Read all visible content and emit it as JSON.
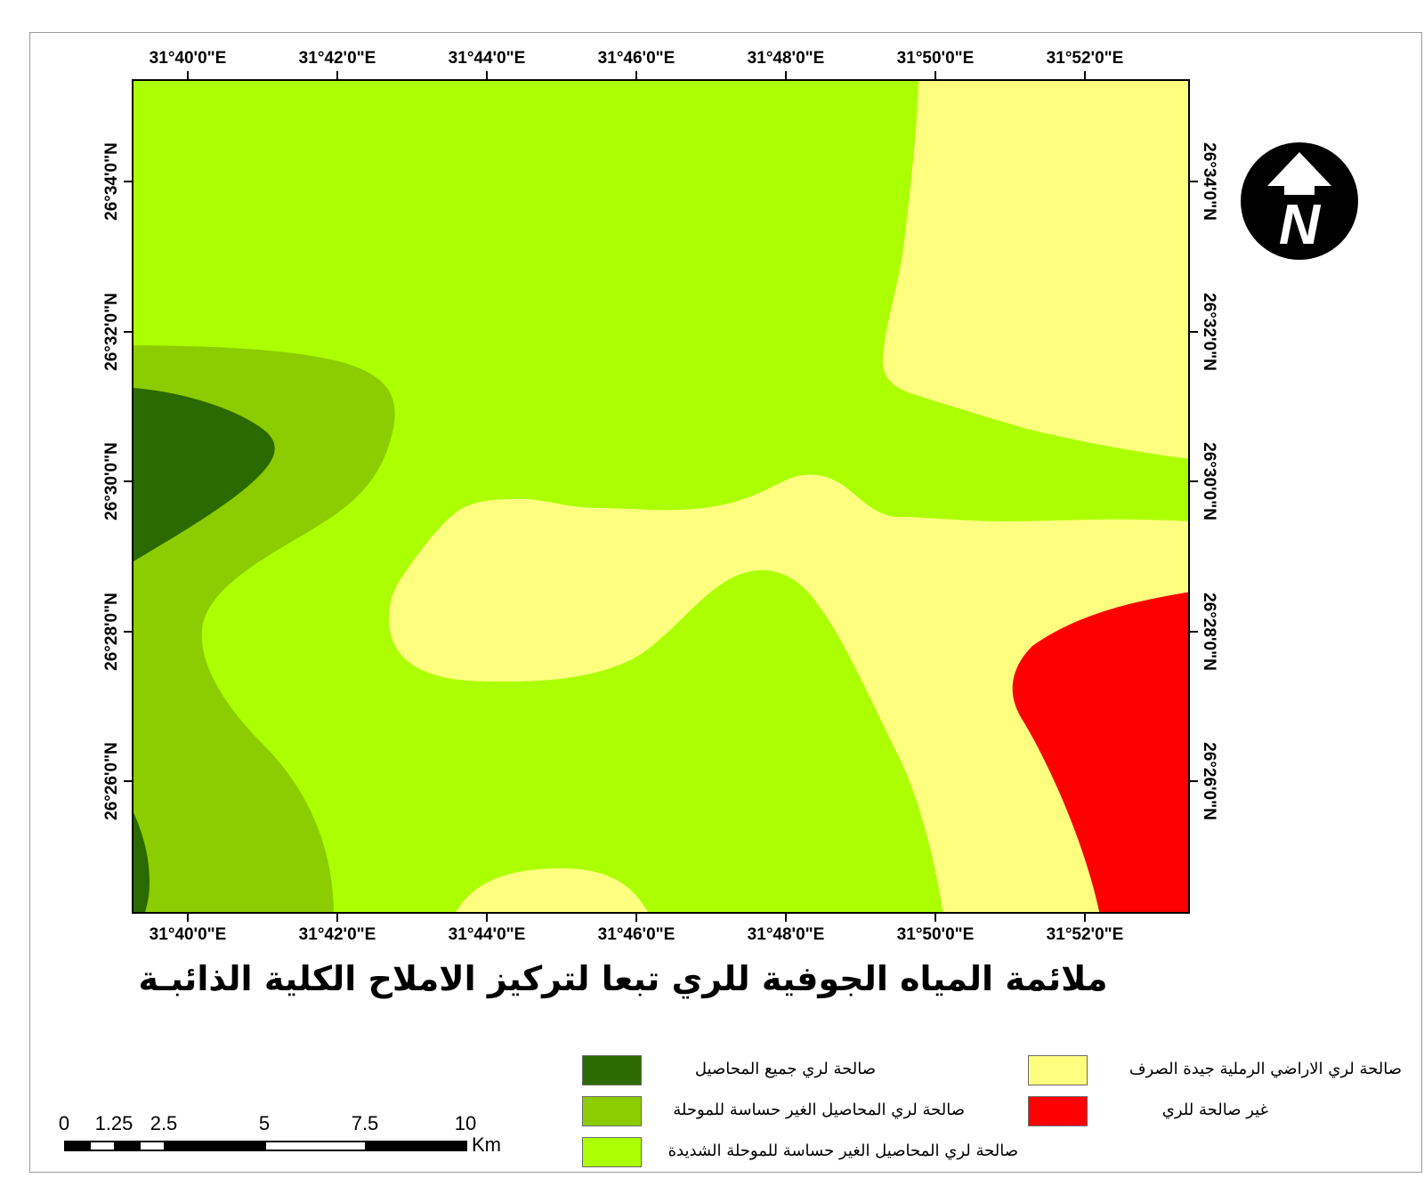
{
  "map": {
    "title": "ملائمة المياه الجوفية للري تبعا لتركيز الاملاح الكلية الذائبـة",
    "north_arrow": {
      "icon": "north-arrow-icon",
      "letter": "N"
    },
    "longitude_ticks": [
      "31°40'0\"E",
      "31°42'0\"E",
      "31°44'0\"E",
      "31°46'0\"E",
      "31°48'0\"E",
      "31°50'0\"E",
      "31°52'0\"E"
    ],
    "latitude_ticks": [
      "26°34'0\"N",
      "26°32'0\"N",
      "26°30'0\"N",
      "26°28'0\"N",
      "26°26'0\"N"
    ],
    "classes": [
      {
        "label": "صالحة لري جميع المحاصيل",
        "color": "#2a6a00"
      },
      {
        "label": "صالحة لري المحاصيل الغير حساسة للموحلة",
        "color": "#8bcd00"
      },
      {
        "label": "صالحة لري المحاصيل الغير حساسة للموحلة الشديدة",
        "color": "#abff00"
      },
      {
        "label": "صالحة لري الاراضي الرملية جيدة الصرف",
        "color": "#ffff7f"
      },
      {
        "label": "غير صالحة للري",
        "color": "#ff0000"
      }
    ],
    "scale_bar": {
      "labels": [
        "0",
        "1.25",
        "2.5",
        "5",
        "7.5",
        "10"
      ],
      "unit": "Km"
    }
  }
}
